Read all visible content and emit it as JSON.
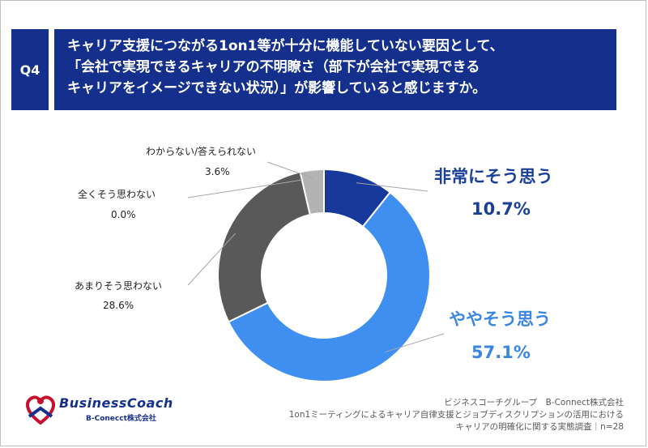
{
  "question": {
    "badge": "Q4",
    "lines": [
      "キャリア支援につながる1on1等が十分に機能していない要因として、",
      "「会社で実現できるキャリアの不明瞭さ（部下が会社で実現できる",
      "キャリアをイメージできない状況）」が影響していると感じますか。"
    ]
  },
  "chart_data": {
    "type": "pie",
    "donut": true,
    "categories": [
      "非常にそう思う",
      "ややそう思う",
      "あまりそう思わない",
      "全くそう思わない",
      "わからない/答えられない"
    ],
    "values": [
      10.7,
      57.1,
      28.6,
      0.0,
      3.6
    ],
    "value_labels": [
      "10.7%",
      "57.1%",
      "28.6%",
      "0.0%",
      "3.6%"
    ],
    "colors": [
      "#17399b",
      "#3f8ff0",
      "#595959",
      "#a6a6a6",
      "#b3b3b3"
    ]
  },
  "logo": {
    "name": "BusinessCoach",
    "company": "B-Conecct株式会社"
  },
  "footer": {
    "lines": [
      "ビジネスコーチグループ　B-Connect株式会社",
      "1on1ミーティングによるキャリア自律支援とジョブディスクリプションの活用における",
      "キャリアの明確化に関する実態調査｜n=28"
    ]
  }
}
